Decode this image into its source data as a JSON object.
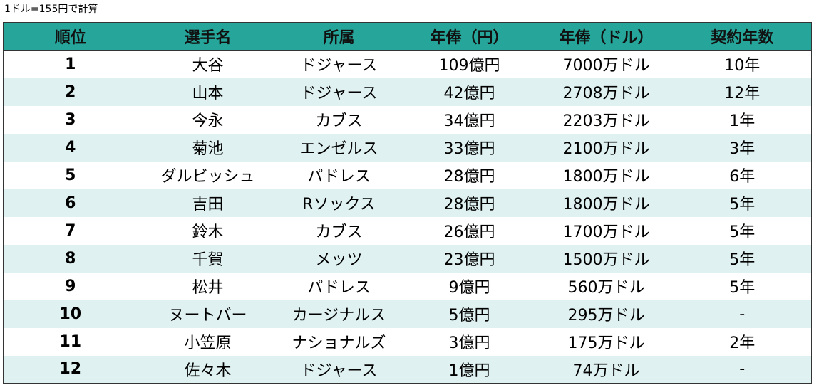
{
  "note": "1ドル=155円で計算",
  "table": {
    "headers": [
      "順位",
      "選手名",
      "所属",
      "年俸（円）",
      "年俸（ドル）",
      "契約年数"
    ],
    "rows": [
      [
        "1",
        "大谷",
        "ドジャース",
        "109億円",
        "7000万ドル",
        "10年"
      ],
      [
        "2",
        "山本",
        "ドジャース",
        "42億円",
        "2708万ドル",
        "12年"
      ],
      [
        "3",
        "今永",
        "カブス",
        "34億円",
        "2203万ドル",
        "1年"
      ],
      [
        "4",
        "菊池",
        "エンゼルス",
        "33億円",
        "2100万ドル",
        "3年"
      ],
      [
        "5",
        "ダルビッシュ",
        "パドレス",
        "28億円",
        "1800万ドル",
        "6年"
      ],
      [
        "6",
        "吉田",
        "Rソックス",
        "28億円",
        "1800万ドル",
        "5年"
      ],
      [
        "7",
        "鈴木",
        "カブス",
        "26億円",
        "1700万ドル",
        "5年"
      ],
      [
        "8",
        "千賀",
        "メッツ",
        "23億円",
        "1500万ドル",
        "5年"
      ],
      [
        "9",
        "松井",
        "パドレス",
        "9億円",
        "560万ドル",
        "5年"
      ],
      [
        "10",
        "ヌートバー",
        "カージナルス",
        "5億円",
        "295万ドル",
        "-"
      ],
      [
        "11",
        "小笠原",
        "ナショナルズ",
        "3億円",
        "175万ドル",
        "2年"
      ],
      [
        "12",
        "佐々木",
        "ドジャース",
        "1億円",
        "74万ドル",
        "-"
      ]
    ]
  },
  "colors": {
    "header_bg": "#26a69a",
    "alt_row_bg": "#dff1f1",
    "row_bg": "#ffffff",
    "border": "#333333"
  }
}
